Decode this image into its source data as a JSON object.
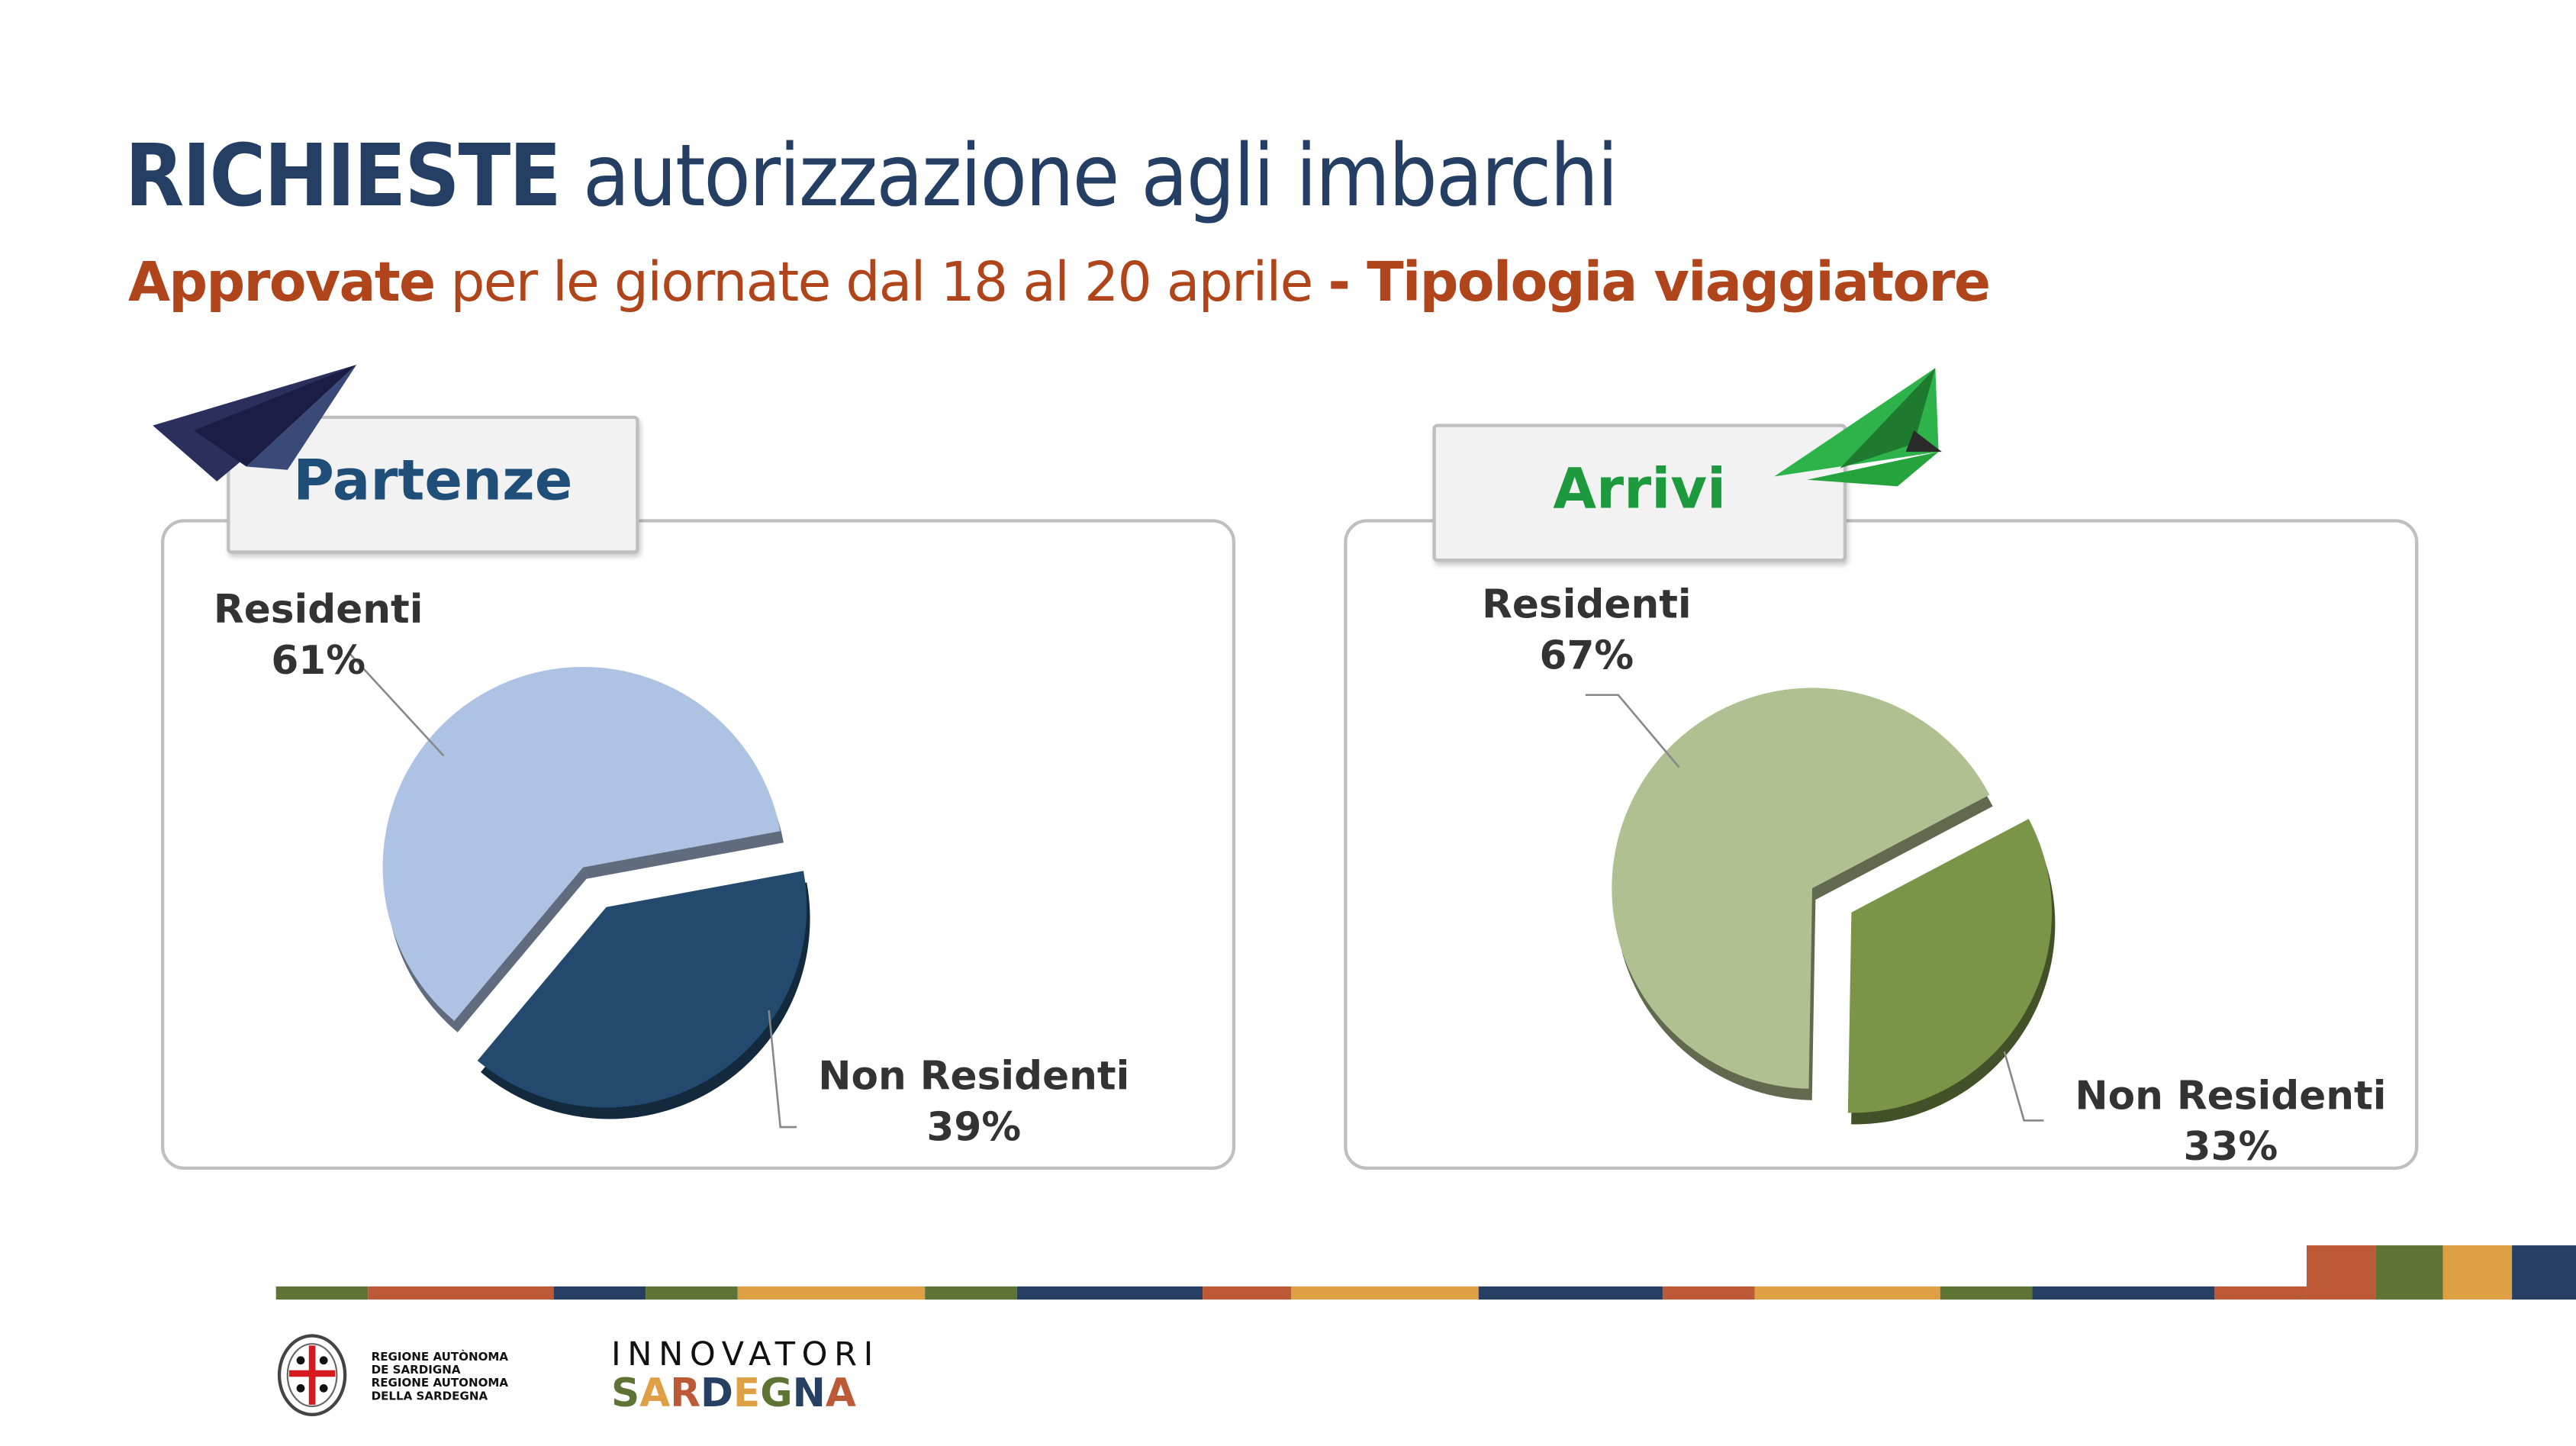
{
  "header": {
    "title_bold": "RICHIESTE",
    "title_rest": "autorizzazione agli imbarchi",
    "subtitle_bold1": "Approvate",
    "subtitle_mid": "per le giornate dal 18 al 20 aprile",
    "subtitle_bold2": "- Tipologia viaggiatore"
  },
  "chart_data": [
    {
      "type": "pie",
      "title": "Partenze",
      "title_color": "#1f4e79",
      "categories": [
        "Residenti",
        "Non Residenti"
      ],
      "values": [
        61,
        39
      ],
      "labels": [
        "61%",
        "39%"
      ],
      "colors": [
        "#aec3e4",
        "#234a6e"
      ],
      "exploded": true
    },
    {
      "type": "pie",
      "title": "Arrivi",
      "title_color": "#1e9a3e",
      "categories": [
        "Residenti",
        "Non Residenti"
      ],
      "values": [
        67,
        33
      ],
      "labels": [
        "67%",
        "33%"
      ],
      "colors": [
        "#b0c090",
        "#7a9448"
      ],
      "exploded": true
    }
  ],
  "icons": {
    "left": "paper-plane-navy",
    "right": "paper-plane-green"
  },
  "footer": {
    "region_logo_lines": [
      "REGIONE AUTÒNOMA",
      "DE SARDIGNA",
      "REGIONE AUTONOMA",
      "DELLA SARDEGNA"
    ],
    "innovatori": "INNOVATORI",
    "sardegna": "SARDEGNA",
    "palette": [
      "#5e7434",
      "#bc5a37",
      "#263f63",
      "#dfa045"
    ]
  }
}
